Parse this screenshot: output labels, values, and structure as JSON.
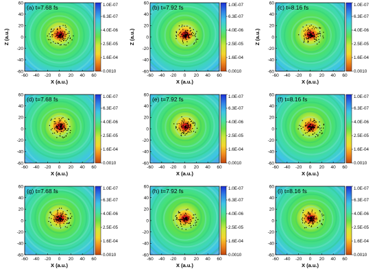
{
  "chart_data": [
    {
      "type": "heatmap",
      "panel_label": "(a) t=7.68 fs",
      "xlabel": "X (a.u.)",
      "ylabel": "Z (a.u.)",
      "xlim": [
        -60,
        60
      ],
      "ylim": [
        -60,
        60
      ],
      "xticks": [
        -60,
        -40,
        -20,
        0,
        20,
        40,
        60
      ],
      "yticks": [
        -60,
        -40,
        -20,
        0,
        20,
        40,
        60
      ],
      "colorbar": {
        "ticks": [
          "1.0E-07",
          "6.3E-07",
          "4.0E-06",
          "2.5E-05",
          "1.6E-04",
          "0.0010"
        ]
      }
    },
    {
      "type": "heatmap",
      "panel_label": "(d) t=7.68 fs",
      "xlabel": "X (a.u.)",
      "ylabel": "",
      "xlim": [
        -60,
        60
      ],
      "ylim": [
        -60,
        60
      ],
      "xticks": [
        -60,
        -40,
        -20,
        0,
        20,
        40,
        60
      ],
      "yticks": [
        -60,
        -40,
        -20,
        0,
        20,
        40,
        60
      ],
      "colorbar": {
        "ticks": [
          "1.0E-07",
          "6.3E-07",
          "4.0E-06",
          "2.5E-05",
          "1.6E-04",
          "0.0010"
        ]
      }
    },
    {
      "type": "heatmap",
      "panel_label": "(g) t=7.68 fs",
      "xlabel": "X (a.u.)",
      "ylabel": "",
      "xlim": [
        -60,
        60
      ],
      "ylim": [
        -60,
        60
      ],
      "xticks": [
        -60,
        -40,
        -20,
        0,
        20,
        40,
        60
      ],
      "yticks": [
        -60,
        -40,
        -20,
        0,
        20,
        40,
        60
      ],
      "colorbar": {
        "ticks": [
          "1.0E-07",
          "6.3E-07",
          "4.0E-06",
          "2.5E-05",
          "1.6E-04",
          "0.0010"
        ]
      }
    },
    {
      "type": "heatmap",
      "panel_label": "(b) t=7.92 fs",
      "xlabel": "X (a.u.)",
      "ylabel": "Z (a.u.)",
      "xlim": [
        -60,
        60
      ],
      "ylim": [
        -60,
        60
      ],
      "xticks": [
        -60,
        -40,
        -20,
        0,
        20,
        40,
        60
      ],
      "yticks": [
        -60,
        -40,
        -20,
        0,
        20,
        40,
        60
      ],
      "colorbar": {
        "ticks": [
          "1.0E-07",
          "6.3E-07",
          "4.0E-06",
          "2.5E-05",
          "1.6E-04",
          "0.0010"
        ]
      }
    },
    {
      "type": "heatmap",
      "panel_label": "(e) t=7.92 fs",
      "xlabel": "X (a.u.)",
      "ylabel": "",
      "xlim": [
        -60,
        60
      ],
      "ylim": [
        -60,
        60
      ],
      "xticks": [
        -60,
        -40,
        -20,
        0,
        20,
        40,
        60
      ],
      "yticks": [
        -60,
        -40,
        -20,
        0,
        20,
        40,
        60
      ],
      "colorbar": {
        "ticks": [
          "1.0E-07",
          "6.3E-07",
          "4.0E-06",
          "2.5E-05",
          "1.6E-04",
          "0.0010"
        ]
      }
    },
    {
      "type": "heatmap",
      "panel_label": "(h) t=7.92 fs",
      "xlabel": "X (a.u.)",
      "ylabel": "",
      "xlim": [
        -60,
        60
      ],
      "ylim": [
        -60,
        60
      ],
      "xticks": [
        -60,
        -40,
        -20,
        0,
        20,
        40,
        60
      ],
      "yticks": [
        -60,
        -40,
        -20,
        0,
        20,
        40,
        60
      ],
      "colorbar": {
        "ticks": [
          "1.0E-07",
          "6.3E-07",
          "4.0E-06",
          "2.5E-05",
          "1.6E-04",
          "0.0010"
        ]
      }
    },
    {
      "type": "heatmap",
      "panel_label": "(c) t=8.16 fs",
      "xlabel": "X (a.u.)",
      "ylabel": "Z (a.u.)",
      "xlim": [
        -60,
        60
      ],
      "ylim": [
        -60,
        60
      ],
      "xticks": [
        -60,
        -40,
        -20,
        0,
        20,
        40,
        60
      ],
      "yticks": [
        -60,
        -40,
        -20,
        0,
        20,
        40,
        60
      ],
      "colorbar": {
        "ticks": [
          "1.0E-07",
          "6.3E-07",
          "4.0E-06",
          "2.5E-05",
          "1.6E-04",
          "0.0010"
        ]
      }
    },
    {
      "type": "heatmap",
      "panel_label": "(f) t=8.16 fs",
      "xlabel": "X (a.u.)",
      "ylabel": "",
      "xlim": [
        -60,
        60
      ],
      "ylim": [
        -60,
        60
      ],
      "xticks": [
        -60,
        -40,
        -20,
        0,
        20,
        40,
        60
      ],
      "yticks": [
        -60,
        -40,
        -20,
        0,
        20,
        40,
        60
      ],
      "colorbar": {
        "ticks": [
          "1.0E-07",
          "6.3E-07",
          "4.0E-06",
          "2.5E-05",
          "1.6E-04",
          "0.0010"
        ]
      }
    },
    {
      "type": "heatmap",
      "panel_label": "(i) t=8.16 fs",
      "xlabel": "X (a.u.)",
      "ylabel": "",
      "xlim": [
        -60,
        60
      ],
      "ylim": [
        -60,
        60
      ],
      "xticks": [
        -60,
        -40,
        -20,
        0,
        20,
        40,
        60
      ],
      "yticks": [
        -60,
        -40,
        -20,
        0,
        20,
        40,
        60
      ],
      "colorbar": {
        "ticks": [
          "1.0E-07",
          "6.3E-07",
          "4.0E-06",
          "2.5E-05",
          "1.6E-04",
          "0.0010"
        ]
      }
    }
  ],
  "colors": {
    "colormap": [
      "#1a2fd6",
      "#2f7fe6",
      "#3fc3e8",
      "#45e0a8",
      "#6be04a",
      "#cfe83a",
      "#f5d62e",
      "#f08a1e",
      "#c1440e"
    ],
    "core": "#d01818",
    "markers": "#000000"
  }
}
